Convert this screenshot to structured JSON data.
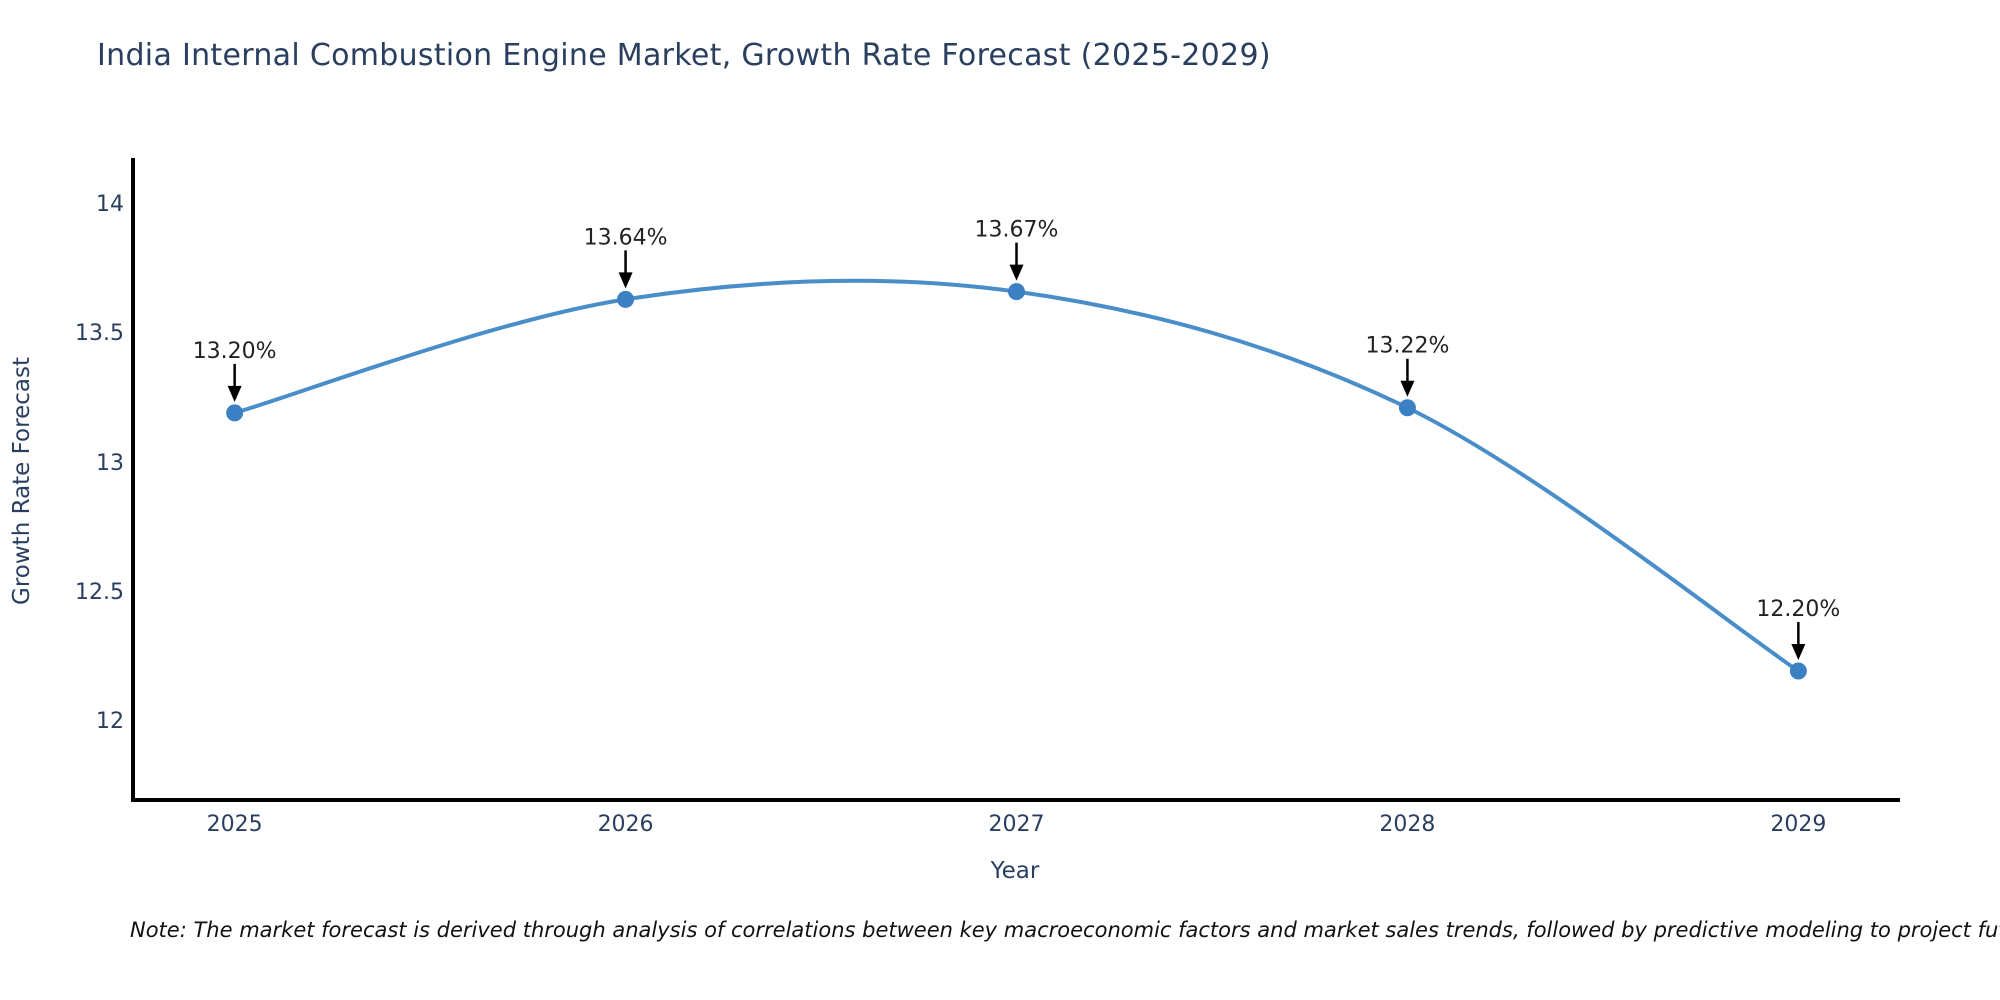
{
  "note": "Note: The market forecast is derived through analysis of correlations between key macroeconomic factors and market sales trends, followed by predictive modeling to project future sal",
  "colors": {
    "line": "#4a8ec9",
    "marker": "#3b80c2",
    "axis": "#000000",
    "arrow": "#000000",
    "annotation_text": "#222222",
    "title_text": "#2a3f5f",
    "tick_text": "#2a3f5f"
  },
  "chart_data": {
    "type": "line",
    "title": "India Internal Combustion Engine Market, Growth Rate Forecast (2025-2029)",
    "xlabel": "Year",
    "ylabel": "Growth Rate Forecast",
    "x": [
      2025,
      2026,
      2027,
      2028,
      2029
    ],
    "y": [
      13.2,
      13.64,
      13.67,
      13.22,
      12.2
    ],
    "point_labels": [
      "13.20%",
      "13.64%",
      "13.67%",
      "13.22%",
      "12.20%"
    ],
    "xticks": [
      2025,
      2026,
      2027,
      2028,
      2029
    ],
    "xticklabels": [
      "2025",
      "2026",
      "2027",
      "2028",
      "2029"
    ],
    "yticks": [
      12,
      12.5,
      13,
      13.5,
      14
    ],
    "yticklabels": [
      "12",
      "12.5",
      "13",
      "13.5",
      "14"
    ],
    "xlim": [
      2024.74,
      2029.26
    ],
    "ylim": [
      11.7,
      14.18
    ],
    "line_shape": "spline",
    "grid": false,
    "legend": false,
    "annotations_have_arrows": true
  }
}
